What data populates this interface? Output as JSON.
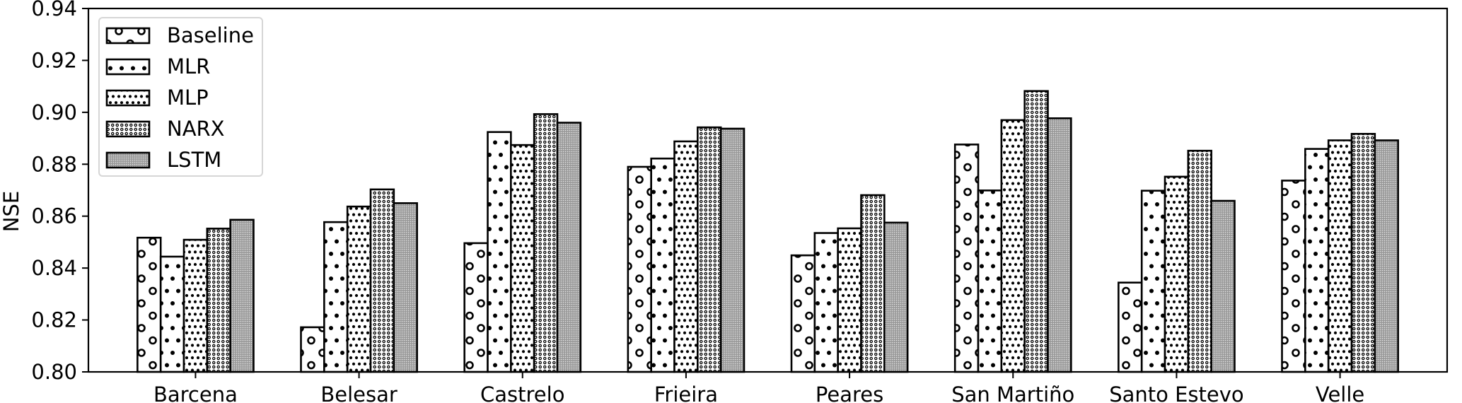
{
  "chart_data": {
    "type": "bar",
    "title": "",
    "xlabel": "",
    "ylabel": "NSE",
    "ylim": [
      0.8,
      0.94
    ],
    "yticks": [
      "0.80",
      "0.82",
      "0.84",
      "0.86",
      "0.88",
      "0.90",
      "0.92",
      "0.94"
    ],
    "grid": false,
    "legend_position": "top-left",
    "categories": [
      "Barcena",
      "Belesar",
      "Castrelo",
      "Frieira",
      "Peares",
      "San Martiño",
      "Santo Estevo",
      "Velle"
    ],
    "series": [
      {
        "name": "Baseline",
        "pattern": "rings",
        "values": [
          0.8517,
          0.8172,
          0.8496,
          0.879,
          0.8449,
          0.8876,
          0.8344,
          0.8737
        ]
      },
      {
        "name": "MLR",
        "pattern": "sparse-dots",
        "values": [
          0.8444,
          0.8577,
          0.8924,
          0.8822,
          0.8535,
          0.8699,
          0.8698,
          0.8859
        ]
      },
      {
        "name": "MLP",
        "pattern": "dots",
        "values": [
          0.8509,
          0.8637,
          0.8874,
          0.8888,
          0.8553,
          0.897,
          0.8752,
          0.8892
        ]
      },
      {
        "name": "NARX",
        "pattern": "small-rings",
        "values": [
          0.8552,
          0.8703,
          0.8993,
          0.8942,
          0.8681,
          0.9082,
          0.8852,
          0.8917
        ]
      },
      {
        "name": "LSTM",
        "pattern": "dense-grey",
        "values": [
          0.8586,
          0.865,
          0.896,
          0.8937,
          0.8575,
          0.8977,
          0.8659,
          0.8892
        ]
      }
    ]
  }
}
